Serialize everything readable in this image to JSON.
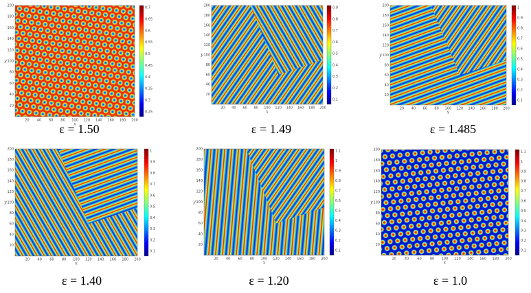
{
  "panels": [
    {
      "caption": "ε = 1.50",
      "x_label": "x",
      "y_label": "y",
      "xticks": [
        20,
        40,
        60,
        80,
        100,
        120,
        140,
        160,
        180,
        200
      ],
      "yticks": [
        20,
        40,
        60,
        80,
        100,
        120,
        140,
        160,
        180,
        200
      ],
      "colorbar_ticks": [
        0.7,
        0.65,
        0.6,
        0.55,
        0.5,
        0.45,
        0.4,
        0.35,
        0.3,
        0.25
      ]
    },
    {
      "caption": "ε = 1.49",
      "x_label": "x",
      "y_label": "y",
      "xticks": [
        20,
        40,
        60,
        80,
        100,
        120,
        140,
        160,
        180,
        200
      ],
      "yticks": [
        20,
        40,
        60,
        80,
        100,
        120,
        140,
        160,
        180,
        200
      ],
      "colorbar_ticks": [
        0.9,
        0.8,
        0.7,
        0.6,
        0.5,
        0.4,
        0.3,
        0.2,
        0.1
      ]
    },
    {
      "caption": "ε = 1.485",
      "x_label": "x",
      "y_label": "y",
      "xticks": [
        20,
        40,
        60,
        80,
        100,
        120,
        140,
        160,
        180,
        200
      ],
      "yticks": [
        20,
        40,
        60,
        80,
        100,
        120,
        140,
        160,
        180,
        200
      ],
      "colorbar_ticks": [
        1,
        0.9,
        0.8,
        0.7,
        0.6,
        0.5,
        0.4,
        0.3,
        0.2,
        0.1
      ]
    },
    {
      "caption": "ε = 1.40",
      "x_label": "x",
      "y_label": "y",
      "xticks": [
        20,
        40,
        60,
        80,
        100,
        120,
        140,
        160,
        180,
        200
      ],
      "yticks": [
        20,
        40,
        60,
        80,
        100,
        120,
        140,
        160,
        180,
        200
      ],
      "colorbar_ticks": [
        1,
        0.9,
        0.8,
        0.7,
        0.6,
        0.5,
        0.4,
        0.3,
        0.2,
        0.1
      ]
    },
    {
      "caption": "ε = 1.20",
      "x_label": "x",
      "y_label": "y",
      "xticks": [
        20,
        40,
        60,
        80,
        100,
        120,
        140,
        160,
        180,
        200
      ],
      "yticks": [
        20,
        40,
        60,
        80,
        100,
        120,
        140,
        160,
        180,
        200
      ],
      "colorbar_ticks": [
        1.1,
        1,
        0.9,
        0.8,
        0.7,
        0.6,
        0.5,
        0.4,
        0.3,
        0.2,
        0.1
      ]
    },
    {
      "caption": "ε = 1.0",
      "x_label": "x",
      "y_label": "y",
      "xticks": [
        20,
        40,
        60,
        80,
        100,
        120,
        140,
        160,
        180,
        200
      ],
      "yticks": [
        20,
        40,
        60,
        80,
        100,
        120,
        140,
        160,
        180,
        200
      ],
      "colorbar_ticks": [
        1.1,
        1,
        0.9,
        0.8,
        0.7,
        0.6,
        0.5,
        0.4,
        0.3,
        0.2,
        0.1
      ]
    }
  ]
}
